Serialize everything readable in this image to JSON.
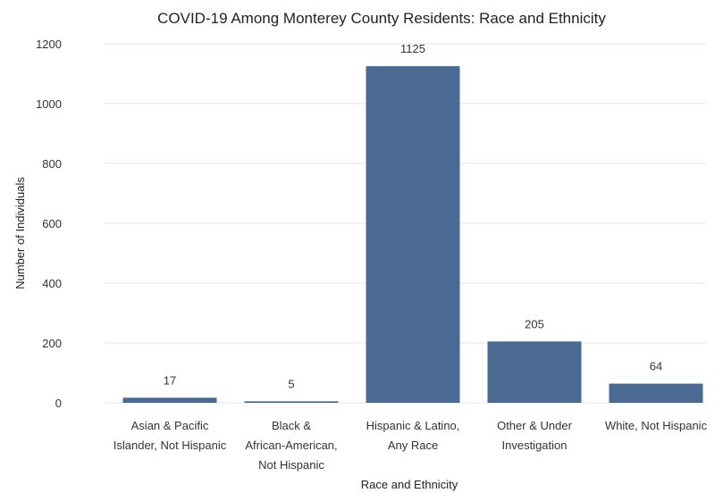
{
  "chart_data": {
    "type": "bar",
    "title": "COVID-19 Among Monterey County Residents: Race and Ethnicity",
    "xlabel": "Race and Ethnicity",
    "ylabel": "Number of Individuals",
    "categories": [
      [
        "Asian & Pacific",
        "Islander, Not Hispanic"
      ],
      [
        "Black &",
        "African-American,",
        "Not Hispanic"
      ],
      [
        "Hispanic & Latino,",
        "Any Race"
      ],
      [
        "Other & Under",
        "Investigation"
      ],
      [
        "White, Not Hispanic"
      ]
    ],
    "values": [
      17,
      5,
      1125,
      205,
      64
    ],
    "data_labels": [
      "17",
      "5",
      "1125",
      "205",
      "64"
    ],
    "yticks": [
      0,
      200,
      400,
      600,
      800,
      1000,
      1200
    ],
    "ylim": [
      0,
      1200
    ],
    "grid": true,
    "bar_color": "#4a6a94"
  }
}
